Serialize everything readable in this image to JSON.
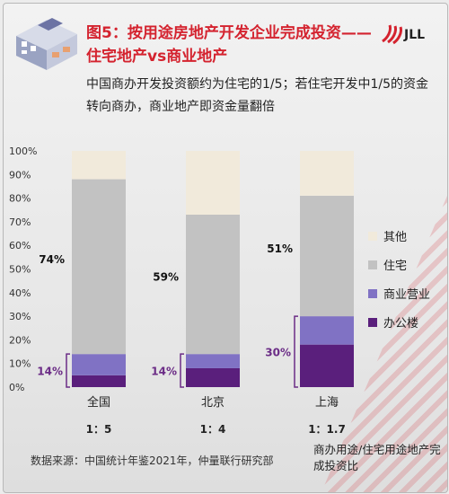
{
  "title": "图5：按用途房地产开发企业完成投资——住宅地产vs商业地产",
  "subtitle": "中国商办开发投资额约为住宅的1/5；若住宅开发中1/5的资金转向商办，商业地产即资金量翻倍",
  "logo_text": "JLL",
  "source": "数据来源：中国统计年鉴2021年，仲量联行研究部",
  "ratio_note": "商办用途/住宅用途地产完成投资比",
  "colors": {
    "title": "#d4232f",
    "other": "#f1eadb",
    "residential": "#c2c2c2",
    "commercial": "#8072c4",
    "office": "#5a1f7c",
    "bracket": "#6b2c86"
  },
  "chart_data": {
    "type": "bar",
    "stacked": true,
    "categories": [
      "全国",
      "北京",
      "上海"
    ],
    "ratios": [
      "1：5",
      "1：4",
      "1：1.7"
    ],
    "ylim": [
      0,
      100
    ],
    "yticks": [
      "0%",
      "10%",
      "20%",
      "30%",
      "40%",
      "50%",
      "60%",
      "70%",
      "80%",
      "90%",
      "100%"
    ],
    "series": [
      {
        "name": "办公楼",
        "values": [
          5,
          8,
          18
        ]
      },
      {
        "name": "商业营业",
        "values": [
          9,
          6,
          12
        ]
      },
      {
        "name": "住宅",
        "values": [
          74,
          59,
          51
        ]
      },
      {
        "name": "其他",
        "values": [
          12,
          27,
          19
        ]
      }
    ],
    "residential_labels": [
      "74%",
      "59%",
      "51%"
    ],
    "commercial_labels": [
      "14%",
      "14%",
      "30%"
    ],
    "legend_position": "right"
  }
}
